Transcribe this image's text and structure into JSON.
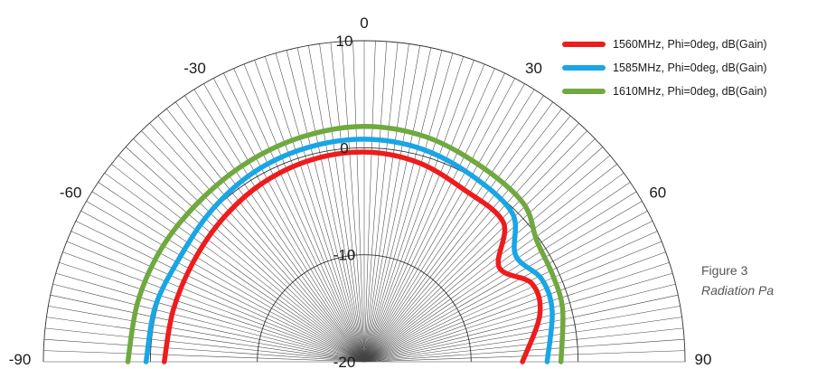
{
  "chart_data": {
    "type": "polar",
    "angle_unit": "deg",
    "angle_ticks": [
      -90,
      -60,
      -30,
      0,
      30,
      60,
      90
    ],
    "angle_tick_labels": [
      "-90",
      "-60",
      "-30",
      "0",
      "30",
      "60",
      "90"
    ],
    "radial_range": [
      -20,
      10
    ],
    "radial_ticks": [
      -20,
      -10,
      0,
      10
    ],
    "radial_tick_labels": [
      "-20",
      "-10",
      "0",
      "10"
    ],
    "grid": true,
    "legend_position": "top-right",
    "series": [
      {
        "name": "1560MHz, Phi=0deg, dB(Gain)",
        "color": "#ee1c1c",
        "theta": [
          -90,
          -75,
          -60,
          -45,
          -30,
          -15,
          0,
          15,
          30,
          45,
          55,
          65,
          75,
          90
        ],
        "r": [
          -1.3,
          -1.5,
          -1.5,
          -1.2,
          -0.8,
          -0.5,
          -0.4,
          -0.7,
          -1.4,
          -1.6,
          -4.6,
          -2.7,
          -3.0,
          -5.2
        ]
      },
      {
        "name": "1585MHz, Phi=0deg, dB(Gain)",
        "color": "#18a6e5",
        "theta": [
          -90,
          -75,
          -60,
          -45,
          -30,
          -15,
          0,
          15,
          30,
          45,
          55,
          65,
          75,
          90
        ],
        "r": [
          0.4,
          0.2,
          -0.2,
          0.1,
          0.5,
          0.7,
          0.8,
          0.6,
          0.1,
          -0.4,
          -2.7,
          -1.7,
          -1.8,
          -2.9
        ]
      },
      {
        "name": "1610MHz, Phi=0deg, dB(Gain)",
        "color": "#6fa93f",
        "theta": [
          -90,
          -75,
          -60,
          -45,
          -30,
          -15,
          0,
          15,
          30,
          45,
          55,
          65,
          75,
          90
        ],
        "r": [
          2.1,
          1.9,
          1.7,
          1.5,
          1.6,
          1.8,
          2.0,
          1.8,
          1.3,
          1.0,
          -0.3,
          -0.6,
          -0.8,
          -1.6
        ]
      }
    ]
  },
  "caption": {
    "figure": "Figure 3",
    "subtitle": "Radiation Pa"
  }
}
